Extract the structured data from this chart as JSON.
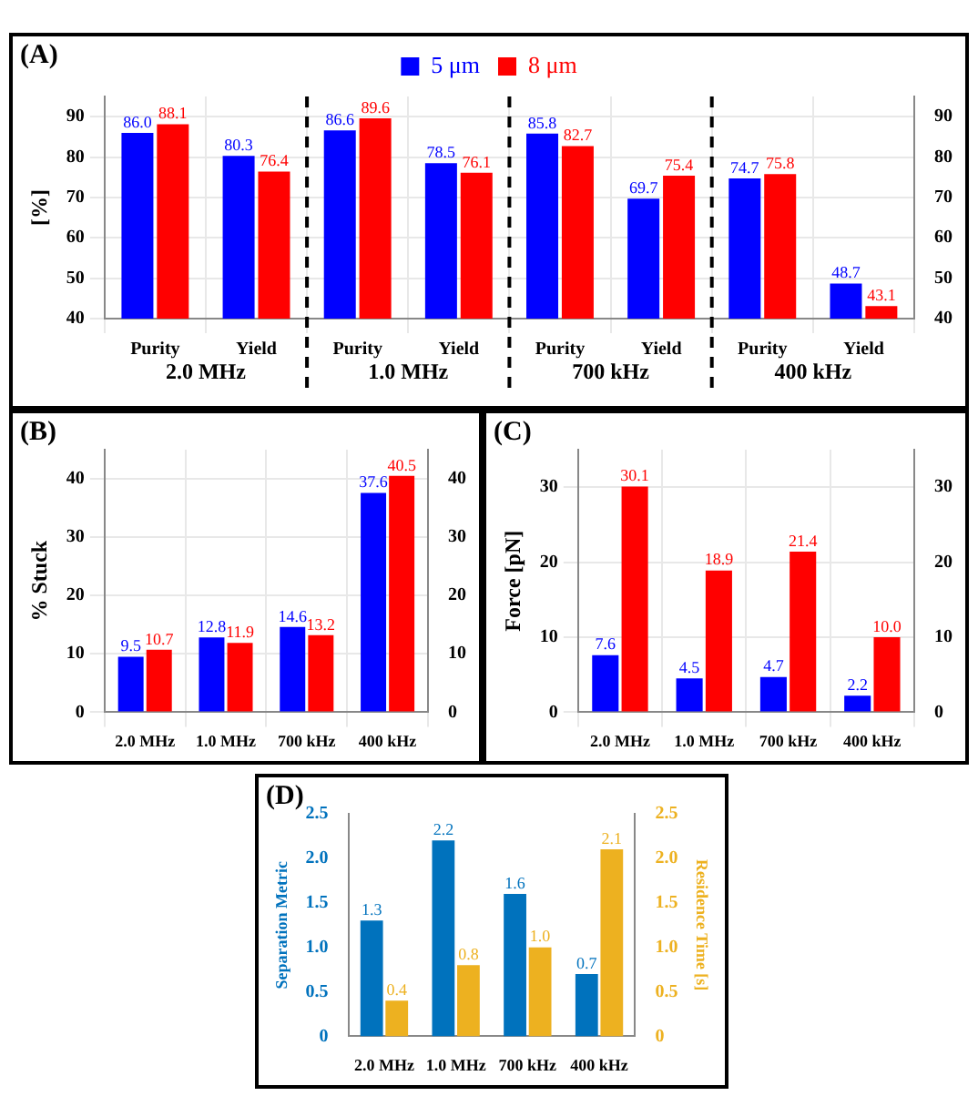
{
  "chart_data": [
    {
      "type": "bar",
      "title": "(A)",
      "ylabel": "[%]",
      "legend": "top",
      "grid": true,
      "categories": [
        "Purity",
        "Yield",
        "Purity",
        "Yield",
        "Purity",
        "Yield",
        "Purity",
        "Yield"
      ],
      "annotations": [
        "2.0 MHz",
        "1.0 MHz",
        "700 kHz",
        "400 kHz"
      ],
      "ylim": [
        40,
        95
      ],
      "yticks": [
        40,
        50,
        60,
        70,
        80,
        90
      ],
      "y2lim": [
        40,
        95
      ],
      "y2ticks": [
        40,
        50,
        60,
        70,
        80,
        90
      ],
      "series": [
        {
          "name": "5 μm",
          "color": "#0000ff",
          "values": [
            86.0,
            80.3,
            86.6,
            78.5,
            85.8,
            69.7,
            74.7,
            48.7
          ],
          "value_labels": [
            "86.0",
            "80.3",
            "86.6",
            "78.5",
            "85.8",
            "69.7",
            "74.7",
            "48.7"
          ]
        },
        {
          "name": "8 μm",
          "color": "#ff0000",
          "values": [
            88.1,
            76.4,
            89.6,
            76.1,
            82.7,
            75.4,
            75.8,
            43.1
          ],
          "value_labels": [
            "88.1",
            "76.4",
            "89.6",
            "76.1",
            "82.7",
            "75.4",
            "75.8",
            "43.1"
          ]
        }
      ]
    },
    {
      "type": "bar",
      "title": "(B)",
      "ylabel": "% Stuck",
      "grid": true,
      "categories": [
        "2.0 MHz",
        "1.0 MHz",
        "700 kHz",
        "400 kHz"
      ],
      "ylim": [
        0,
        45
      ],
      "yticks": [
        0,
        10,
        20,
        30,
        40
      ],
      "y2lim": [
        0,
        45
      ],
      "y2ticks": [
        0,
        10,
        20,
        30,
        40
      ],
      "series": [
        {
          "color": "#0000ff",
          "values": [
            9.5,
            12.8,
            14.6,
            37.6
          ],
          "value_labels": [
            "9.5",
            "12.8",
            "14.6",
            "37.6"
          ]
        },
        {
          "color": "#ff0000",
          "values": [
            10.7,
            11.9,
            13.2,
            40.5
          ],
          "value_labels": [
            "10.7",
            "11.9",
            "13.2",
            "40.5"
          ]
        }
      ]
    },
    {
      "type": "bar",
      "title": "(C)",
      "ylabel": "Force [pN]",
      "grid": true,
      "categories": [
        "2.0 MHz",
        "1.0 MHz",
        "700 kHz",
        "400 kHz"
      ],
      "ylim": [
        0,
        35
      ],
      "yticks": [
        0,
        10,
        20,
        30
      ],
      "y2lim": [
        0,
        35
      ],
      "y2ticks": [
        0,
        10,
        20,
        30
      ],
      "series": [
        {
          "color": "#0000ff",
          "values": [
            7.6,
            4.5,
            4.7,
            2.2
          ],
          "value_labels": [
            "7.6",
            "4.5",
            "4.7",
            "2.2"
          ]
        },
        {
          "color": "#ff0000",
          "values": [
            30.1,
            18.9,
            21.4,
            10.0
          ],
          "value_labels": [
            "30.1",
            "18.9",
            "21.4",
            "10.0"
          ]
        }
      ]
    },
    {
      "type": "bar",
      "title": "(D)",
      "ylabel": "Separation Metric",
      "y2label": "Residence Time [s]",
      "categories": [
        "2.0 MHz",
        "1.0 MHz",
        "700 kHz",
        "400 kHz"
      ],
      "ylim": [
        0,
        2.5
      ],
      "yticks": [
        0,
        {
          "value": 0.5,
          "label": "0.5"
        },
        {
          "value": 1,
          "label": "1.0"
        },
        {
          "value": 1.5,
          "label": "1.5"
        },
        {
          "value": 2,
          "label": "2.0"
        },
        {
          "value": 2.5,
          "label": "2.5"
        }
      ],
      "y2lim": [
        0,
        2.5
      ],
      "y2ticks": [
        0,
        {
          "value": 0.5,
          "label": "0.5"
        },
        {
          "value": 1,
          "label": "1.0"
        },
        {
          "value": 1.5,
          "label": "1.5"
        },
        {
          "value": 2,
          "label": "2.0"
        },
        {
          "value": 2.5,
          "label": "2.5"
        }
      ],
      "series": [
        {
          "color": "#0072bd",
          "values": [
            1.3,
            2.2,
            1.6,
            0.7
          ],
          "value_labels": [
            "1.3",
            "2.2",
            "1.6",
            "0.7"
          ]
        },
        {
          "color": "#edb120",
          "axis": "y2",
          "values": [
            0.4,
            0.8,
            1.0,
            2.1
          ],
          "value_labels": [
            "0.4",
            "0.8",
            "1.0",
            "2.1"
          ]
        }
      ]
    }
  ]
}
